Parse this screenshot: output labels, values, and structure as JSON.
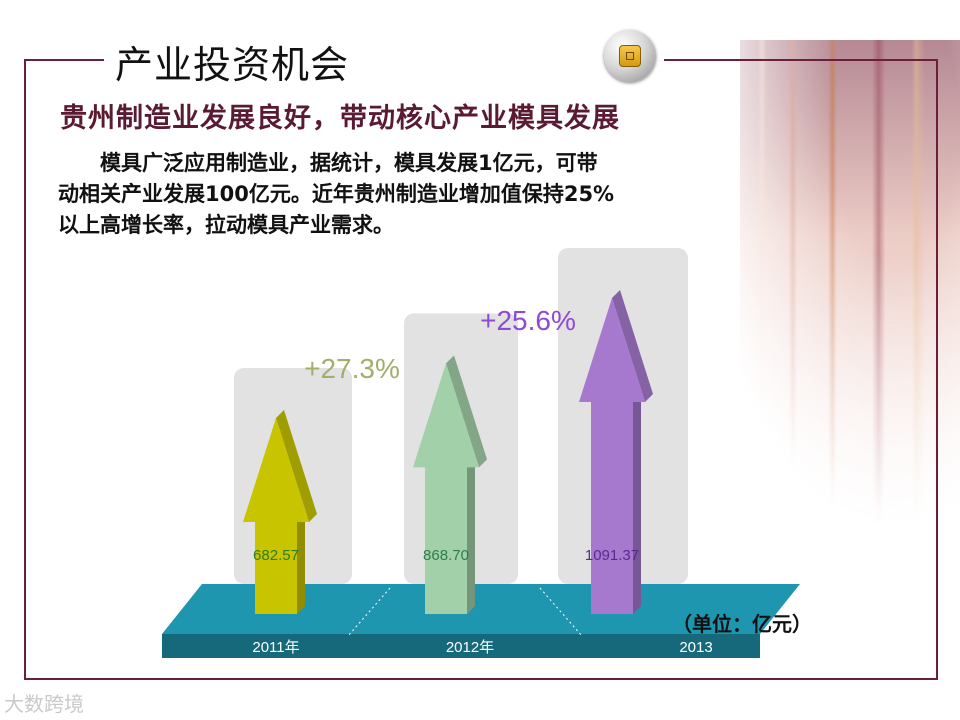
{
  "slide": {
    "title": "产业投资机会",
    "subtitle": "贵州制造业发展良好，带动核心产业模具发展",
    "body_lines": [
      "　　模具广泛应用制造业，据统计，模具发展1亿元，可带",
      "动相关产业发展100亿元。近年贵州制造业增加值保持25%",
      "以上高增长率，拉动模具产业需求。"
    ],
    "unit_label": "（单位：亿元）",
    "watermark": "大数跨境",
    "colors": {
      "frame": "#6b1f3b",
      "subtitle": "#5a1a32",
      "platform": "#1f96b0"
    }
  },
  "chart_data": {
    "type": "bar",
    "categories": [
      "2011年",
      "2012年",
      "2013"
    ],
    "values": [
      682.57,
      868.7,
      1091.37
    ],
    "value_labels": [
      "682.57",
      "868.70",
      "1091.37"
    ],
    "growth_labels": [
      "+27.3%",
      "+25.6%"
    ],
    "unit": "亿元",
    "series_colors": [
      "#c8c400",
      "#a2d0a8",
      "#a679cf"
    ],
    "value_label_colors": [
      "#2e7d1e",
      "#2e7d4f",
      "#5a2a90"
    ],
    "growth_label_colors": [
      "#a5ad6a",
      "#8f49d6"
    ]
  }
}
